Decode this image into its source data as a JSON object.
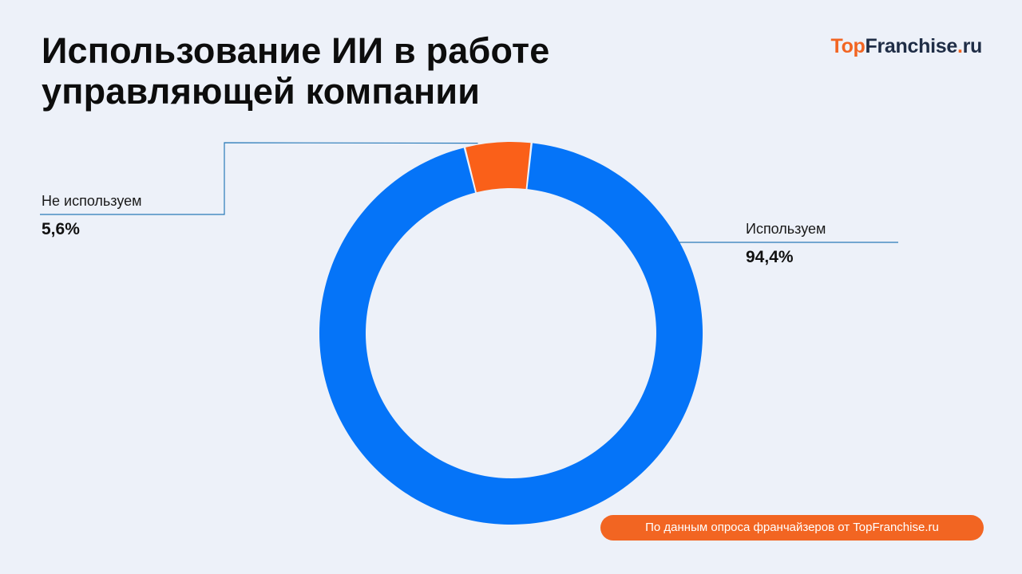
{
  "header": {
    "title": "Использование ИИ в работе управляющей компании"
  },
  "logo": {
    "top": "Top",
    "franchise": "Franchise",
    "dot": ".",
    "ru": "ru"
  },
  "chart_data": {
    "type": "pie",
    "title": "Использование ИИ в работе управляющей компании",
    "donut": true,
    "start_at": "top",
    "slices": [
      {
        "label": "Используем",
        "value": 94.4,
        "display": "94,4%",
        "color": "#0574f8"
      },
      {
        "label": "Не используем",
        "value": 5.6,
        "display": "5,6%",
        "color": "#fa6019"
      }
    ],
    "leader_line_color": "#2a7ab8"
  },
  "footer": {
    "source": "По данным опроса франчайзеров от TopFranchise.ru"
  }
}
